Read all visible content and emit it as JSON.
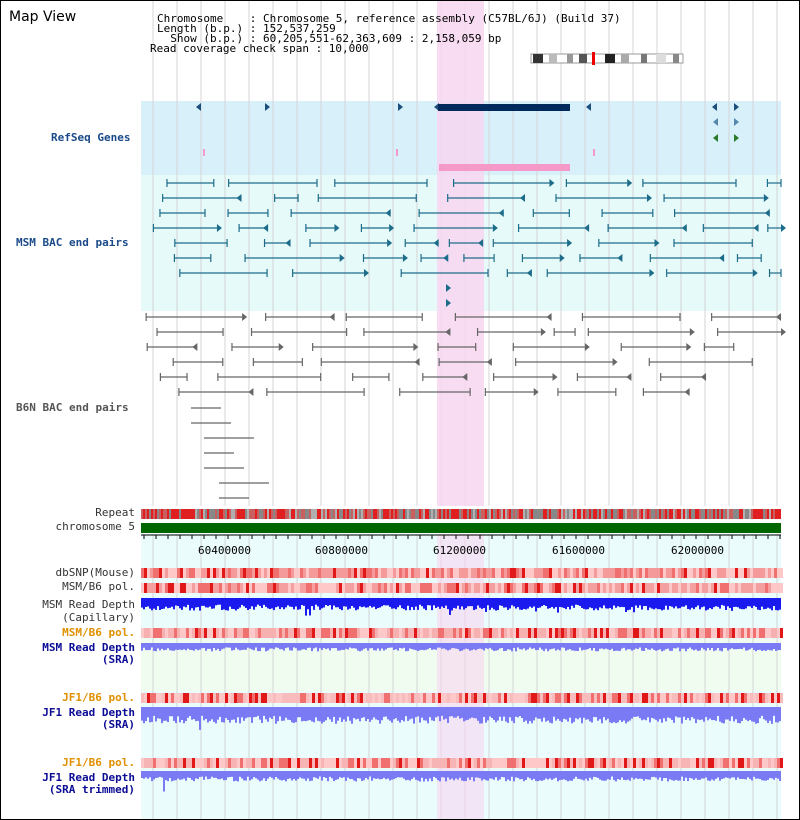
{
  "title": "Map View",
  "header": {
    "chromosome_line": "Chromosome    : Chromosome 5, reference assembly (C57BL/6J) (Build 37)",
    "length_line": "Length (b.p.) : 152,537,259",
    "show_line": "  Show (b.p.) : 60,205,551-62,363,609 : 2,158,059 bp",
    "coverage_line": "Read coverage check span : 10,000"
  },
  "tracks": {
    "refseq": "RefSeq Genes",
    "msm_bac": "MSM BAC end pairs",
    "b6n_bac": "B6N BAC end pairs",
    "repeat": "Repeat",
    "chromosome": "chromosome 5",
    "dbsnp": "dbSNP(Mouse)",
    "msm_b6_pol_1": "MSM/B6 pol.",
    "msm_depth_cap_1": "MSM Read Depth",
    "msm_depth_cap_2": "(Capillary)",
    "msm_b6_pol_2": "MSM/B6 pol.",
    "msm_depth_sra_1": "MSM Read Depth",
    "msm_depth_sra_2": "(SRA)",
    "jf1_b6_pol_1": "JF1/B6 pol.",
    "jf1_depth_sra_1": "JF1 Read Depth",
    "jf1_depth_sra_2": "(SRA)",
    "jf1_b6_pol_2": "JF1/B6 pol.",
    "jf1_depth_trim_1": "JF1 Read Depth",
    "jf1_depth_trim_2": "(SRA trimmed)"
  },
  "axis": {
    "ticks": [
      "60400000",
      "60800000",
      "61200000",
      "61600000",
      "62000000"
    ]
  },
  "colors": {
    "highlight": "#f7d6f0",
    "refseq_bg": "#d8f0fa",
    "lightcyan_bg": "#e6fafa",
    "chromosome": "#006600",
    "gene_dark": "#002a5c",
    "gene_pink": "#f59ac8",
    "msm_pair": "#1d6c8a",
    "b6n_pair": "#666666",
    "depth_dark": "#1a1aee",
    "depth_light": "#7a7af5"
  }
}
